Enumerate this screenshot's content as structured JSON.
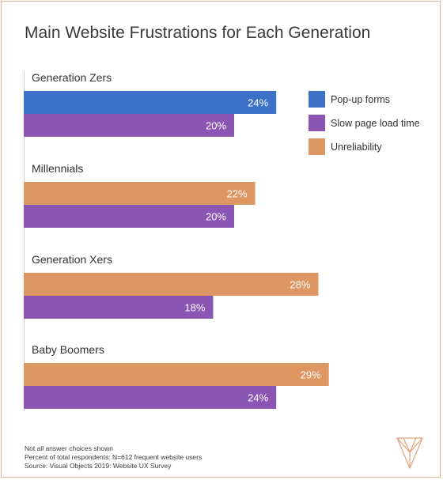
{
  "chart_data": {
    "type": "bar",
    "orientation": "horizontal",
    "title": "Main Website Frustrations for Each Generation",
    "categories": [
      "Generation Zers",
      "Millennials",
      "Generation Xers",
      "Baby Boomers"
    ],
    "groups": [
      {
        "category": "Generation Zers",
        "bars": [
          {
            "series": "Pop-up forms",
            "value": 24,
            "label": "24%"
          },
          {
            "series": "Slow page load time",
            "value": 20,
            "label": "20%"
          }
        ]
      },
      {
        "category": "Millennials",
        "bars": [
          {
            "series": "Unreliability",
            "value": 22,
            "label": "22%"
          },
          {
            "series": "Slow page load time",
            "value": 20,
            "label": "20%"
          }
        ]
      },
      {
        "category": "Generation Xers",
        "bars": [
          {
            "series": "Unreliability",
            "value": 28,
            "label": "28%"
          },
          {
            "series": "Slow page load time",
            "value": 18,
            "label": "18%"
          }
        ]
      },
      {
        "category": "Baby Boomers",
        "bars": [
          {
            "series": "Unreliability",
            "value": 29,
            "label": "29%"
          },
          {
            "series": "Slow page load time",
            "value": 24,
            "label": "24%"
          }
        ]
      }
    ],
    "legend": {
      "placement": "top-right",
      "entries": [
        {
          "name": "Pop-up forms",
          "color": "#3b72c8"
        },
        {
          "name": "Slow page load time",
          "color": "#8b55b4"
        },
        {
          "name": "Unreliability",
          "color": "#de9663"
        }
      ]
    },
    "xlim": [
      0,
      30
    ],
    "grid": false
  },
  "footnotes": [
    "Not all answer choices shown",
    "Percent of total respondents: N=612 frequent website users",
    "Source: Visual Objects 2019: Website UX Survey"
  ],
  "logo_icon": "visual-objects-logo-icon"
}
